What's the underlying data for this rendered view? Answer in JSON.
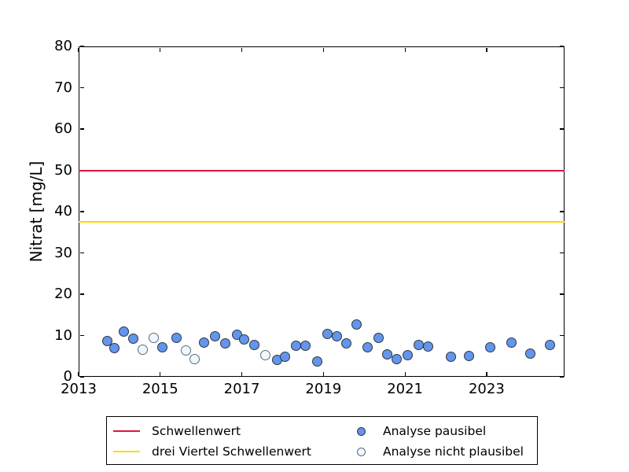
{
  "figure_title": "",
  "y_axis_title": "Nitrat [mg/L]",
  "legend": {
    "position": "bottom",
    "items": [
      {
        "label": "Schwellenwert",
        "swatch": "line",
        "color": "#DC143C"
      },
      {
        "label": "drei Viertel Schwellenwert",
        "swatch": "line",
        "color": "#FFD700"
      },
      {
        "label": "Analyse pausibel",
        "swatch": "circle-filled",
        "fill": "#6495ED",
        "edge": "#2b3642"
      },
      {
        "label": "Analyse nicht plausibel",
        "swatch": "circle-open",
        "fill": "#F0F8FF",
        "edge": "#5a6b7c"
      }
    ]
  },
  "chart_data": {
    "type": "scatter",
    "title": "",
    "xlabel": "",
    "ylabel": "Nitrat [mg/L]",
    "xlim": [
      2013,
      2024.91
    ],
    "ylim": [
      0,
      80
    ],
    "xticks": [
      2013,
      2015,
      2017,
      2019,
      2021,
      2023
    ],
    "yticks": [
      0,
      10,
      20,
      30,
      40,
      50,
      60,
      70,
      80
    ],
    "grid": false,
    "legend_position": "bottom",
    "hlines": [
      {
        "y": 50,
        "color": "#DC143C",
        "label": "Schwellenwert"
      },
      {
        "y": 37.5,
        "color": "#FFD700",
        "label": "drei Viertel Schwellenwert"
      }
    ],
    "series": [
      {
        "name": "Analyse pausibel",
        "marker": "filled-circle",
        "fill": "#6495ED",
        "edge": "#2b3642",
        "points": [
          [
            2013.7,
            8.6
          ],
          [
            2013.88,
            7.0
          ],
          [
            2014.1,
            10.9
          ],
          [
            2014.33,
            9.3
          ],
          [
            2015.06,
            7.2
          ],
          [
            2015.4,
            9.5
          ],
          [
            2016.08,
            8.3
          ],
          [
            2016.35,
            9.9
          ],
          [
            2016.6,
            8.1
          ],
          [
            2016.88,
            10.1
          ],
          [
            2017.06,
            9.0
          ],
          [
            2017.3,
            7.8
          ],
          [
            2017.86,
            4.1
          ],
          [
            2018.06,
            4.9
          ],
          [
            2018.33,
            7.6
          ],
          [
            2018.56,
            7.6
          ],
          [
            2018.85,
            3.8
          ],
          [
            2019.1,
            10.4
          ],
          [
            2019.33,
            9.8
          ],
          [
            2019.56,
            8.1
          ],
          [
            2019.82,
            12.6
          ],
          [
            2020.09,
            7.2
          ],
          [
            2020.36,
            9.4
          ],
          [
            2020.57,
            5.5
          ],
          [
            2020.8,
            4.3
          ],
          [
            2021.06,
            5.3
          ],
          [
            2021.34,
            7.8
          ],
          [
            2021.56,
            7.4
          ],
          [
            2022.13,
            4.8
          ],
          [
            2022.56,
            5.0
          ],
          [
            2023.08,
            7.1
          ],
          [
            2023.6,
            8.3
          ],
          [
            2024.08,
            5.7
          ],
          [
            2024.56,
            7.8
          ]
        ]
      },
      {
        "name": "Analyse nicht plausibel",
        "marker": "open-circle",
        "fill": "#F0F8FF",
        "edge": "#5a6b7c",
        "points": [
          [
            2014.58,
            6.6
          ],
          [
            2014.84,
            9.5
          ],
          [
            2015.64,
            6.4
          ],
          [
            2015.85,
            4.2
          ],
          [
            2017.57,
            5.2
          ]
        ]
      }
    ]
  }
}
